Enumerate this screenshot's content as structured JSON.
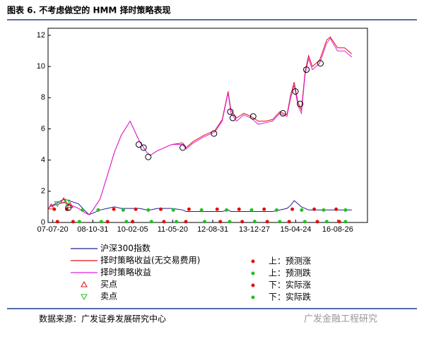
{
  "chart_data": {
    "type": "line",
    "title": "图表 6. 不考虑做空的 HMM 择时策略表现",
    "xlim": [
      2007.4,
      2017.6
    ],
    "ylim": [
      0,
      12
    ],
    "yticks": [
      0,
      2,
      4,
      6,
      8,
      10,
      12
    ],
    "xticks": [
      {
        "value": 2007.55,
        "label": "07-07-20"
      },
      {
        "value": 2008.83,
        "label": "08-10-31"
      },
      {
        "value": 2010.1,
        "label": "10-02-05"
      },
      {
        "value": 2011.38,
        "label": "11-05-20"
      },
      {
        "value": 2012.66,
        "label": "12-08-31"
      },
      {
        "value": 2013.99,
        "label": "13-12-27"
      },
      {
        "value": 2015.31,
        "label": "15-04-24"
      },
      {
        "value": 2016.65,
        "label": "16-08-26"
      }
    ],
    "x": [
      2007.45,
      2007.91,
      2008.37,
      2008.6,
      2008.71,
      2008.83,
      2009.06,
      2009.29,
      2009.52,
      2009.74,
      2010.02,
      2010.32,
      2010.55,
      2010.66,
      2010.89,
      2011.35,
      2011.7,
      2011.81,
      2012.04,
      2012.39,
      2012.73,
      2012.96,
      2013.15,
      2013.24,
      2013.42,
      2013.65,
      2013.88,
      2014.11,
      2014.34,
      2014.57,
      2014.8,
      2015.03,
      2015.15,
      2015.26,
      2015.38,
      2015.49,
      2015.61,
      2015.72,
      2015.84,
      2016.07,
      2016.3,
      2016.41,
      2016.64,
      2016.87,
      2017.1
    ],
    "series": [
      {
        "name": "沪深300指数",
        "color": "#1f1f8f",
        "values": [
          1.0,
          1.5,
          1.2,
          0.7,
          0.5,
          0.6,
          0.8,
          0.9,
          1.0,
          0.9,
          0.9,
          0.9,
          0.8,
          0.8,
          0.9,
          0.9,
          0.8,
          0.7,
          0.7,
          0.7,
          0.7,
          0.7,
          0.8,
          0.7,
          0.7,
          0.7,
          0.7,
          0.7,
          0.7,
          0.7,
          0.8,
          0.9,
          1.1,
          1.4,
          1.2,
          1.0,
          0.9,
          0.8,
          0.8,
          0.8,
          0.8,
          0.8,
          0.8,
          0.8,
          0.8
        ]
      },
      {
        "name": "择时策略收益(无交易费用)",
        "color": "#e01010",
        "values": [
          1.0,
          1.3,
          0.9,
          0.6,
          0.5,
          0.8,
          1.5,
          3.0,
          4.5,
          5.6,
          6.5,
          5.2,
          4.5,
          4.3,
          4.6,
          5.0,
          5.1,
          4.8,
          5.2,
          5.6,
          5.9,
          6.6,
          8.4,
          7.2,
          6.7,
          7.0,
          6.8,
          6.5,
          6.5,
          6.6,
          7.1,
          6.9,
          8.2,
          9.0,
          7.7,
          7.2,
          9.7,
          10.7,
          10.0,
          10.4,
          11.7,
          11.9,
          11.2,
          11.2,
          10.8
        ]
      },
      {
        "name": "择时策略收益",
        "color": "#e020e0",
        "values": [
          1.0,
          1.3,
          0.9,
          0.6,
          0.5,
          0.8,
          1.5,
          3.0,
          4.5,
          5.6,
          6.5,
          5.2,
          4.5,
          4.3,
          4.6,
          5.0,
          5.0,
          4.7,
          5.1,
          5.5,
          5.8,
          6.5,
          8.3,
          7.0,
          6.5,
          6.9,
          6.7,
          6.3,
          6.4,
          6.5,
          7.0,
          6.8,
          8.0,
          8.8,
          7.5,
          7.0,
          9.5,
          10.5,
          9.8,
          10.2,
          11.5,
          11.8,
          11.0,
          11.0,
          10.6
        ]
      }
    ],
    "signals": [
      {
        "name": "买点",
        "color": "#e01010",
        "shape": "triangle-up",
        "x": [
          2007.5,
          2007.9,
          2008.1
        ],
        "values": [
          1.0,
          1.4,
          1.1
        ]
      },
      {
        "name": "卖点",
        "color": "#20c020",
        "shape": "triangle-down",
        "x": [
          2007.7,
          2008.0
        ],
        "values": [
          1.2,
          1.3
        ]
      }
    ],
    "markers": [
      {
        "name": "上：预测涨",
        "color": "#e01010",
        "x": [
          2007.6,
          2008.0,
          2009.5,
          2010.2,
          2011.0,
          2011.9,
          2012.8,
          2013.5,
          2014.3,
          2015.2,
          2015.9,
          2016.6
        ],
        "values": [
          0.85,
          0.85,
          0.85,
          0.85,
          0.85,
          0.85,
          0.85,
          0.85,
          0.85,
          0.85,
          0.85,
          0.85
        ]
      },
      {
        "name": "上：预测跌",
        "color": "#20c020",
        "x": [
          2008.5,
          2009.0,
          2009.8,
          2010.6,
          2011.4,
          2012.3,
          2013.1,
          2013.9,
          2014.7,
          2015.5,
          2016.2,
          2016.9
        ],
        "values": [
          0.8,
          0.8,
          0.8,
          0.8,
          0.8,
          0.8,
          0.8,
          0.8,
          0.8,
          0.8,
          0.8,
          0.8
        ]
      },
      {
        "name": "下：实际涨",
        "color": "#e01010",
        "x": [
          2007.7,
          2008.2,
          2009.3,
          2010.1,
          2011.1,
          2011.8,
          2012.9,
          2013.6,
          2014.4,
          2015.1,
          2016.0,
          2016.7
        ],
        "values": [
          0.05,
          0.05,
          0.05,
          0.05,
          0.05,
          0.05,
          0.05,
          0.05,
          0.05,
          0.05,
          0.05,
          0.05
        ]
      },
      {
        "name": "下：实际跌",
        "color": "#20c020",
        "x": [
          2008.4,
          2009.1,
          2009.9,
          2010.7,
          2011.5,
          2012.4,
          2013.2,
          2014.0,
          2014.8,
          2015.6,
          2016.3,
          2016.9
        ],
        "values": [
          0.05,
          0.05,
          0.05,
          0.05,
          0.05,
          0.05,
          0.05,
          0.05,
          0.05,
          0.05,
          0.05,
          0.05
        ]
      }
    ],
    "circles": {
      "x": [
        2008.05,
        2010.3,
        2010.45,
        2010.6,
        2011.7,
        2012.7,
        2013.22,
        2013.3,
        2013.95,
        2014.9,
        2015.3,
        2015.45,
        2015.65,
        2016.1
      ],
      "values": [
        0.95,
        5.0,
        4.8,
        4.2,
        4.8,
        5.7,
        7.1,
        6.7,
        6.8,
        7.0,
        8.4,
        7.6,
        9.8,
        10.2
      ]
    }
  },
  "footer": {
    "source": "数据来源：广发证券发展研究中心",
    "watermark": "广发金融工程研究"
  }
}
